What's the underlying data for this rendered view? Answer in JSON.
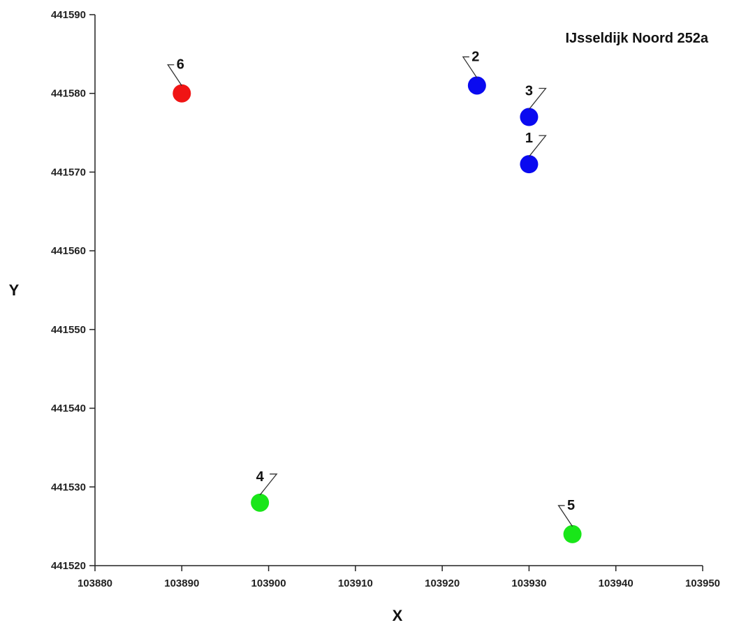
{
  "chart_data": {
    "type": "scatter",
    "title": "IJsseldijk Noord 252a",
    "xlabel": "X",
    "ylabel": "Y",
    "xlim": [
      103880,
      103950
    ],
    "ylim": [
      441520,
      441590
    ],
    "x_ticks": [
      "103880",
      "103890",
      "103900",
      "103910",
      "103920",
      "103930",
      "103940",
      "103950"
    ],
    "y_ticks": [
      "441520",
      "441530",
      "441540",
      "441550",
      "441560",
      "441570",
      "441580",
      "441590"
    ],
    "grid": false,
    "points": [
      {
        "label": "1",
        "x": 103930,
        "y": 441571,
        "color": "#0a0af0",
        "label_side": "right"
      },
      {
        "label": "2",
        "x": 103924,
        "y": 441581,
        "color": "#0a0af0",
        "label_side": "left"
      },
      {
        "label": "3",
        "x": 103930,
        "y": 441577,
        "color": "#0a0af0",
        "label_side": "right"
      },
      {
        "label": "4",
        "x": 103899,
        "y": 441528,
        "color": "#19e619",
        "label_side": "right"
      },
      {
        "label": "5",
        "x": 103935,
        "y": 441524,
        "color": "#19e619",
        "label_side": "left"
      },
      {
        "label": "6",
        "x": 103890,
        "y": 441580,
        "color": "#f01414",
        "label_side": "left"
      }
    ]
  }
}
